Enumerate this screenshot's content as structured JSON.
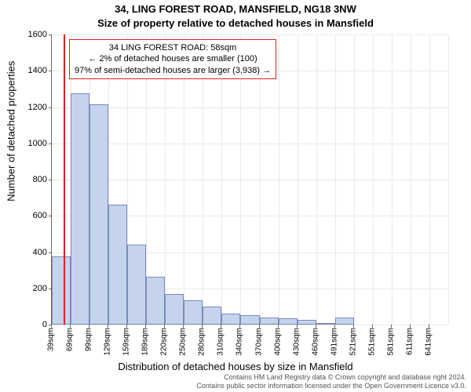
{
  "header": {
    "title1": "34, LING FOREST ROAD, MANSFIELD, NG18 3NW",
    "title2": "Size of property relative to detached houses in Mansfield"
  },
  "chart": {
    "type": "histogram",
    "ylabel": "Number of detached properties",
    "xlabel": "Distribution of detached houses by size in Mansfield",
    "ylim": [
      0,
      1600
    ],
    "ytick_step": 200,
    "bar_fill": "#c6d3ec",
    "bar_stroke": "rgba(70,90,160,0.6)",
    "grid_color": "#e9e9ef",
    "background_color": "#ffffff",
    "marker_color": "#dd2222",
    "marker_x_value": 58,
    "x_start": 39,
    "x_step": 30,
    "x_bins": 21,
    "x_categories": [
      "39sqm",
      "69sqm",
      "99sqm",
      "129sqm",
      "159sqm",
      "189sqm",
      "220sqm",
      "250sqm",
      "280sqm",
      "310sqm",
      "340sqm",
      "370sqm",
      "400sqm",
      "430sqm",
      "460sqm",
      "491sqm",
      "521sqm",
      "551sqm",
      "581sqm",
      "611sqm",
      "641sqm"
    ],
    "values": [
      375,
      1275,
      1215,
      660,
      440,
      265,
      170,
      135,
      100,
      60,
      50,
      40,
      35,
      25,
      10,
      40,
      0,
      0,
      0,
      0,
      0
    ]
  },
  "info_box": {
    "line1": "34 LING FOREST ROAD: 58sqm",
    "line2": "← 2% of detached houses are smaller (100)",
    "line3": "97% of semi-detached houses are larger (3,938) →"
  },
  "footer": {
    "line1": "Contains HM Land Registry data © Crown copyright and database right 2024.",
    "line2": "Contains public sector information licensed under the Open Government Licence v3.0."
  }
}
